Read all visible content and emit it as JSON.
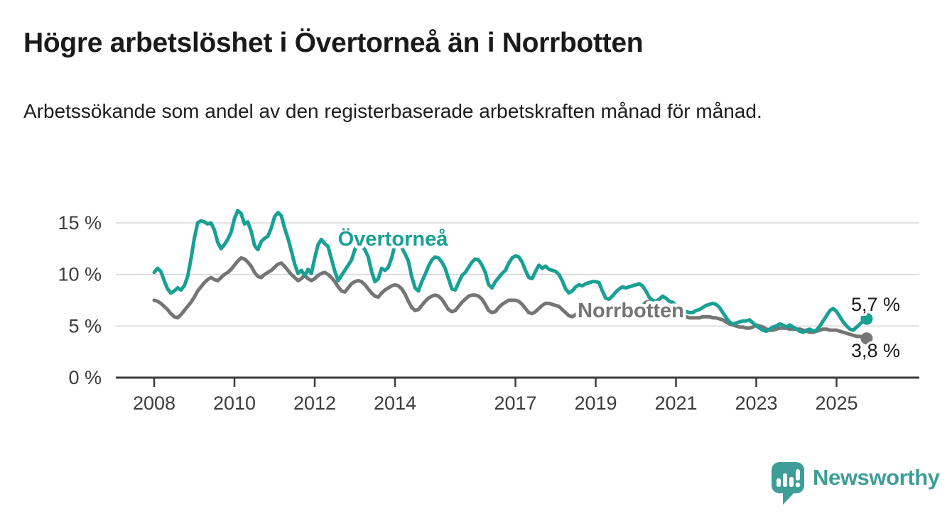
{
  "header": {
    "title": "Högre arbetslöshet i Övertorneå än i Norrbotten",
    "subtitle": "Arbetssökande som andel av den registerbaserade arbetskraften månad för månad."
  },
  "branding": {
    "logo_text": "Newsworthy",
    "logo_color": "#3d9d97",
    "logo_icon": "speech-bubble-bar-chart-icon"
  },
  "chart_data": {
    "type": "line",
    "title": "Högre arbetslöshet i Övertorneå än i Norrbotten",
    "xlabel": "",
    "ylabel": "",
    "x_unit": "month",
    "x_start": "2008-01",
    "x_end": "2025-10",
    "ylim": [
      0,
      17
    ],
    "grid": "horizontal-gridlines",
    "legend_position": "inline-labels-on-lines",
    "colors": {
      "overtornea": "#18a094",
      "norrbotten": "#757575",
      "gridline": "#d9d9d9",
      "axis": "#3c3c3c",
      "text": "#1a1a1a"
    },
    "y_ticks": [
      0,
      5,
      10,
      15
    ],
    "y_tick_labels": [
      "0 %",
      "5 %",
      "10 %",
      "15 %"
    ],
    "x_ticks": [
      2008,
      2010,
      2012,
      2014,
      2017,
      2019,
      2021,
      2023,
      2025
    ],
    "x_tick_labels": [
      "2008",
      "2010",
      "2012",
      "2014",
      "2017",
      "2019",
      "2021",
      "2023",
      "2025"
    ],
    "series": [
      {
        "name": "Övertorneå",
        "color": "#18a094",
        "end_label": "5,7 %",
        "end_value": 5.7,
        "values": [
          10.2,
          10.6,
          10.3,
          9.4,
          8.6,
          8.2,
          8.4,
          8.7,
          8.5,
          8.9,
          9.8,
          11.5,
          13.5,
          15.0,
          15.2,
          15.1,
          14.9,
          15.0,
          14.3,
          13.1,
          12.5,
          12.9,
          13.4,
          14.1,
          15.4,
          16.2,
          15.9,
          14.9,
          15.1,
          14.2,
          12.8,
          12.4,
          13.2,
          13.5,
          13.7,
          14.5,
          15.6,
          16.0,
          15.7,
          14.5,
          13.5,
          12.3,
          11.0,
          10.1,
          10.4,
          9.9,
          10.5,
          10.1,
          11.6,
          12.9,
          13.4,
          13.0,
          12.7,
          11.5,
          10.3,
          9.4,
          9.9,
          10.4,
          10.9,
          11.4,
          12.4,
          13.1,
          12.8,
          12.4,
          11.7,
          10.3,
          9.3,
          9.6,
          10.6,
          10.4,
          10.7,
          11.6,
          12.9,
          13.4,
          12.6,
          12.0,
          11.3,
          9.8,
          8.7,
          8.4,
          9.3,
          10.0,
          10.8,
          11.4,
          11.7,
          11.6,
          11.2,
          10.6,
          9.6,
          8.6,
          8.5,
          9.2,
          9.9,
          10.2,
          10.7,
          11.2,
          11.5,
          11.4,
          10.9,
          10.2,
          9.0,
          8.7,
          9.3,
          9.7,
          10.1,
          10.4,
          11.1,
          11.6,
          11.8,
          11.7,
          11.2,
          10.4,
          9.7,
          9.6,
          10.3,
          10.9,
          10.6,
          10.8,
          10.5,
          10.4,
          10.3,
          10.0,
          9.4,
          8.6,
          8.2,
          8.4,
          8.8,
          9.0,
          8.9,
          9.1,
          9.2,
          9.3,
          9.3,
          9.2,
          8.4,
          7.7,
          7.6,
          7.9,
          8.3,
          8.6,
          8.8,
          8.7,
          8.8,
          8.9,
          9.0,
          9.1,
          8.9,
          8.4,
          7.8,
          7.5,
          7.4,
          7.6,
          7.9,
          7.7,
          7.4,
          7.3,
          7.0,
          6.8,
          6.6,
          6.4,
          6.3,
          6.3,
          6.5,
          6.6,
          6.8,
          7.0,
          7.1,
          7.2,
          7.1,
          6.8,
          6.3,
          5.8,
          5.4,
          5.2,
          5.3,
          5.4,
          5.5,
          5.5,
          5.6,
          5.3,
          5.0,
          4.8,
          4.6,
          4.5,
          4.7,
          4.9,
          5.0,
          5.2,
          5.1,
          4.9,
          5.1,
          4.9,
          4.7,
          4.5,
          4.4,
          4.6,
          4.7,
          4.5,
          4.6,
          5.0,
          5.5,
          6.0,
          6.5,
          6.7,
          6.4,
          5.9,
          5.4,
          5.0,
          4.7,
          4.6,
          4.9,
          5.2,
          5.5,
          5.7
        ]
      },
      {
        "name": "Norrbotten",
        "color": "#757575",
        "end_label": "3,8 %",
        "end_value": 3.8,
        "values": [
          7.5,
          7.4,
          7.2,
          6.9,
          6.6,
          6.2,
          5.9,
          5.8,
          6.1,
          6.5,
          6.9,
          7.3,
          7.8,
          8.4,
          8.8,
          9.2,
          9.5,
          9.7,
          9.5,
          9.4,
          9.7,
          10.0,
          10.2,
          10.5,
          10.9,
          11.3,
          11.6,
          11.5,
          11.2,
          10.8,
          10.2,
          9.8,
          9.7,
          10.0,
          10.2,
          10.4,
          10.7,
          11.0,
          11.1,
          10.8,
          10.4,
          10.0,
          9.7,
          9.4,
          9.6,
          9.9,
          9.6,
          9.4,
          9.6,
          9.9,
          10.1,
          10.2,
          10.0,
          9.7,
          9.3,
          8.8,
          8.4,
          8.3,
          8.7,
          9.1,
          9.3,
          9.4,
          9.3,
          9.0,
          8.6,
          8.2,
          7.9,
          7.8,
          8.2,
          8.5,
          8.7,
          8.9,
          9.0,
          8.9,
          8.6,
          8.1,
          7.4,
          6.8,
          6.5,
          6.6,
          7.0,
          7.4,
          7.7,
          7.9,
          8.0,
          7.9,
          7.6,
          7.1,
          6.6,
          6.4,
          6.5,
          6.9,
          7.3,
          7.6,
          7.9,
          8.0,
          8.0,
          7.9,
          7.6,
          7.1,
          6.5,
          6.3,
          6.4,
          6.8,
          7.1,
          7.3,
          7.5,
          7.5,
          7.5,
          7.4,
          7.1,
          6.7,
          6.3,
          6.2,
          6.4,
          6.7,
          7.0,
          7.2,
          7.2,
          7.1,
          7.0,
          6.9,
          6.6,
          6.3,
          6.0,
          5.9,
          6.1,
          6.3,
          6.5,
          6.6,
          6.6,
          6.6,
          6.6,
          6.5,
          6.3,
          6.1,
          5.9,
          5.9,
          6.0,
          6.2,
          6.4,
          6.4,
          6.4,
          6.5,
          6.6,
          6.7,
          7.0,
          7.3,
          7.4,
          7.3,
          7.1,
          6.9,
          6.7,
          6.5,
          6.3,
          6.2,
          6.1,
          6.0,
          5.9,
          5.9,
          5.8,
          5.8,
          5.8,
          5.8,
          5.9,
          5.9,
          5.9,
          5.8,
          5.8,
          5.7,
          5.6,
          5.4,
          5.2,
          5.1,
          5.0,
          4.9,
          4.9,
          4.8,
          4.8,
          4.9,
          5.1,
          5.0,
          4.9,
          4.7,
          4.6,
          4.6,
          4.7,
          4.8,
          4.8,
          4.8,
          4.7,
          4.7,
          4.7,
          4.7,
          4.6,
          4.5,
          4.4,
          4.4,
          4.5,
          4.6,
          4.7,
          4.7,
          4.6,
          4.6,
          4.6,
          4.5,
          4.4,
          4.3,
          4.2,
          4.1,
          4.0,
          4.0,
          3.9,
          3.8
        ]
      }
    ]
  }
}
